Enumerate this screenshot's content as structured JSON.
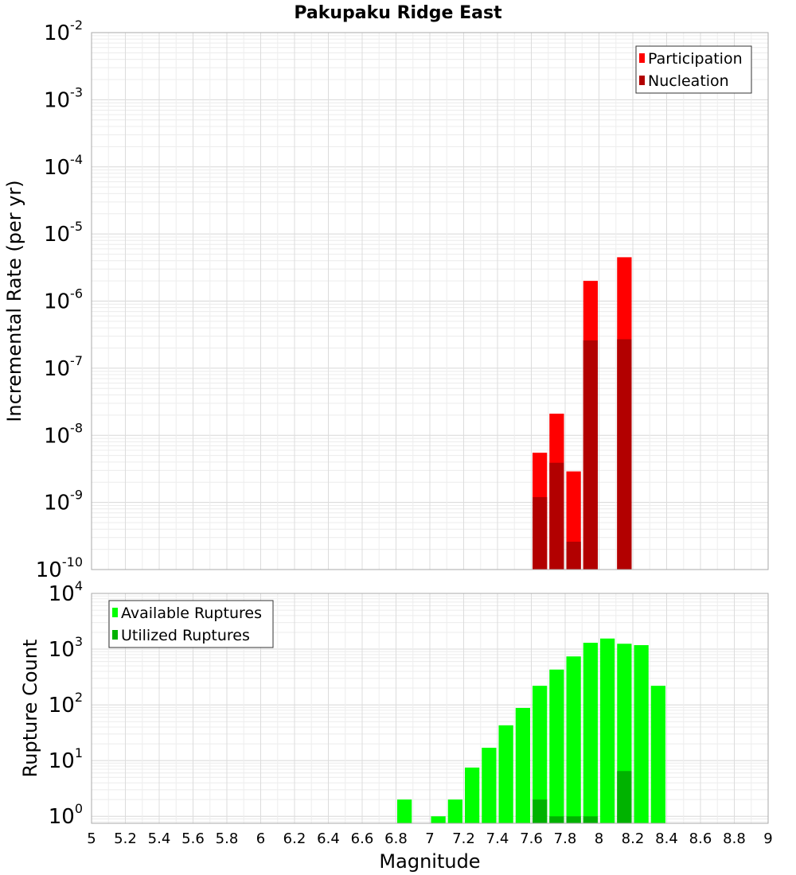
{
  "title": "Pakupaku Ridge East",
  "xlabel": "Magnitude",
  "x_ticks": [
    "5",
    "5.2",
    "5.4",
    "5.6",
    "5.8",
    "6",
    "6.2",
    "6.4",
    "6.6",
    "6.8",
    "7",
    "7.2",
    "7.4",
    "7.6",
    "7.8",
    "8",
    "8.2",
    "8.4",
    "8.6",
    "8.8",
    "9"
  ],
  "chart_data": [
    {
      "type": "bar",
      "title": "Pakupaku Ridge East",
      "xlabel": "Magnitude",
      "ylabel": "Incremental Rate (per yr)",
      "yscale": "log",
      "ylim": [
        1e-10,
        0.01
      ],
      "xlim": [
        5,
        9
      ],
      "y_ticks": [
        {
          "base": "10",
          "exp": "-2"
        },
        {
          "base": "10",
          "exp": "-3"
        },
        {
          "base": "10",
          "exp": "-4"
        },
        {
          "base": "10",
          "exp": "-5"
        },
        {
          "base": "10",
          "exp": "-6"
        },
        {
          "base": "10",
          "exp": "-7"
        },
        {
          "base": "10",
          "exp": "-8"
        },
        {
          "base": "10",
          "exp": "-9"
        },
        {
          "base": "10",
          "exp": "-10"
        }
      ],
      "legend_position": "top-right",
      "grid": true,
      "x": [
        7.65,
        7.75,
        7.85,
        7.95,
        8.15
      ],
      "series": [
        {
          "name": "Participation",
          "color": "#ff0000",
          "values": [
            5.5e-09,
            2.1e-08,
            2.9e-09,
            2e-06,
            4.5e-06
          ]
        },
        {
          "name": "Nucleation",
          "color": "#b20000",
          "values": [
            1.2e-09,
            3.9e-09,
            2.6e-10,
            2.6e-07,
            2.7e-07
          ]
        }
      ]
    },
    {
      "type": "bar",
      "xlabel": "Magnitude",
      "ylabel": "Rupture Count",
      "yscale": "log",
      "ylim": [
        0.75,
        10000
      ],
      "xlim": [
        5,
        9
      ],
      "y_ticks": [
        {
          "base": "10",
          "exp": "4"
        },
        {
          "base": "10",
          "exp": "3"
        },
        {
          "base": "10",
          "exp": "2"
        },
        {
          "base": "10",
          "exp": "1"
        },
        {
          "base": "10",
          "exp": "0"
        }
      ],
      "legend_position": "top-left",
      "grid": true,
      "x": [
        6.85,
        6.95,
        7.05,
        7.15,
        7.25,
        7.35,
        7.45,
        7.55,
        7.65,
        7.75,
        7.85,
        7.95,
        8.05,
        8.15,
        8.25,
        8.35
      ],
      "series": [
        {
          "name": "Available Ruptures",
          "color": "#00ff00",
          "values": [
            2,
            null,
            1,
            2,
            7.5,
            17,
            43,
            88,
            220,
            430,
            740,
            1300,
            1550,
            1250,
            1180,
            220
          ]
        },
        {
          "name": "Utilized Ruptures",
          "color": "#00b200",
          "values": [
            null,
            null,
            null,
            null,
            null,
            null,
            null,
            null,
            2,
            1,
            1,
            1,
            null,
            6.5,
            null,
            null
          ]
        }
      ]
    }
  ]
}
